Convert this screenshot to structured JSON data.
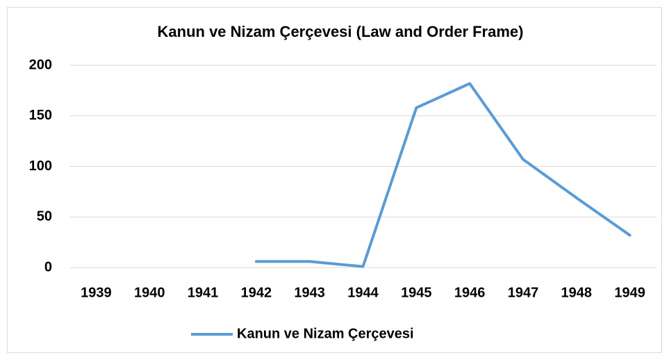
{
  "chart_data": {
    "type": "line",
    "title": "Kanun ve Nizam Çerçevesi (Law and Order Frame)",
    "categories": [
      "1939",
      "1940",
      "1941",
      "1942",
      "1943",
      "1944",
      "1945",
      "1946",
      "1947",
      "1948",
      "1949"
    ],
    "series": [
      {
        "name": "Kanun ve Nizam Çerçevesi",
        "color": "#5b9bd5",
        "values": [
          null,
          null,
          null,
          6,
          6,
          1,
          158,
          182,
          107,
          69,
          32
        ]
      }
    ],
    "ylim": [
      0,
      200
    ],
    "yticks": [
      0,
      50,
      100,
      150,
      200
    ],
    "grid": true,
    "legend": "bottom"
  }
}
